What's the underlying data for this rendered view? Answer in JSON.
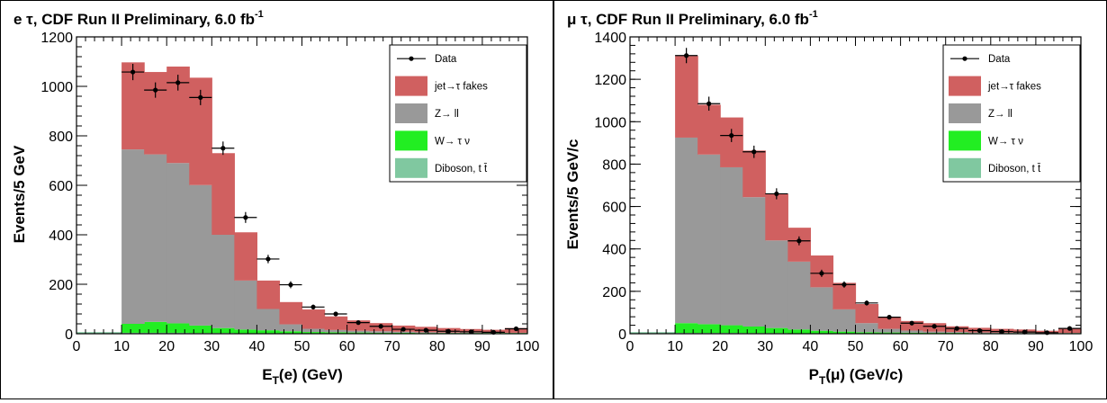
{
  "chart_data": [
    {
      "type": "bar",
      "title": {
        "main": "e  τ, CDF Run II Preliminary, 6.0 fb",
        "sup": "-1"
      },
      "xlabel": {
        "main": "E",
        "sub": "T",
        "rest": "(e) (GeV)"
      },
      "ylabel": "Events/5 GeV",
      "xlim": [
        0,
        100
      ],
      "ylim": [
        0,
        1200
      ],
      "xticks": [
        0,
        10,
        20,
        30,
        40,
        50,
        60,
        70,
        80,
        90,
        100
      ],
      "yticks": [
        0,
        200,
        400,
        600,
        800,
        1000,
        1200
      ],
      "bin_edges": [
        10,
        15,
        20,
        25,
        30,
        35,
        40,
        45,
        50,
        55,
        60,
        65,
        70,
        75,
        80,
        85,
        90,
        95,
        100
      ],
      "stacked": true,
      "series": [
        {
          "name": "Diboson, t t̄",
          "color": "#80c8a0",
          "values": [
            4,
            4,
            4,
            3,
            3,
            2,
            2,
            2,
            1,
            1,
            1,
            1,
            1,
            1,
            1,
            1,
            1,
            1
          ]
        },
        {
          "name": "W→ τ  ν",
          "color": "#22ee22",
          "values": [
            36,
            44,
            38,
            30,
            20,
            15,
            12,
            8,
            6,
            5,
            4,
            3,
            3,
            2,
            2,
            2,
            2,
            2
          ]
        },
        {
          "name": "Z→ ll",
          "color": "#999999",
          "values": [
            705,
            677,
            648,
            568,
            377,
            198,
            86,
            28,
            13,
            9,
            7,
            6,
            4,
            3,
            2,
            2,
            1,
            1
          ]
        },
        {
          "name": "jet→τ fakes",
          "color": "#d06060",
          "values": [
            352,
            333,
            390,
            434,
            330,
            195,
            115,
            90,
            78,
            55,
            42,
            33,
            25,
            22,
            18,
            14,
            12,
            19
          ]
        }
      ],
      "data": {
        "name": "Data",
        "x": [
          12.5,
          17.5,
          22.5,
          27.5,
          32.5,
          37.5,
          42.5,
          47.5,
          52.5,
          57.5,
          62.5,
          67.5,
          72.5,
          77.5,
          82.5,
          87.5,
          92.5,
          97.5
        ],
        "y": [
          1058,
          985,
          1015,
          955,
          750,
          470,
          302,
          198,
          108,
          80,
          45,
          30,
          18,
          14,
          10,
          8,
          6,
          20
        ],
        "err": [
          33,
          31,
          32,
          31,
          27,
          22,
          17,
          14,
          10,
          9,
          7,
          5,
          4,
          4,
          3,
          3,
          2,
          4
        ]
      }
    },
    {
      "type": "bar",
      "title": {
        "main": "μ  τ, CDF Run II Preliminary, 6.0 fb",
        "sup": "-1"
      },
      "xlabel": {
        "main": "P",
        "sub": "T",
        "rest": "(μ) (GeV/c)"
      },
      "ylabel": "Events/5 GeV/c",
      "xlim": [
        0,
        100
      ],
      "ylim": [
        0,
        1400
      ],
      "xticks": [
        0,
        10,
        20,
        30,
        40,
        50,
        60,
        70,
        80,
        90,
        100
      ],
      "yticks": [
        0,
        200,
        400,
        600,
        800,
        1000,
        1200,
        1400
      ],
      "bin_edges": [
        10,
        15,
        20,
        25,
        30,
        35,
        40,
        45,
        50,
        55,
        60,
        65,
        70,
        75,
        80,
        85,
        90,
        95,
        100
      ],
      "stacked": true,
      "series": [
        {
          "name": "Diboson, t t̄",
          "color": "#80c8a0",
          "values": [
            4,
            4,
            4,
            3,
            3,
            2,
            2,
            2,
            1,
            1,
            1,
            1,
            1,
            1,
            1,
            1,
            1,
            1
          ]
        },
        {
          "name": "W→ τ  ν",
          "color": "#22ee22",
          "values": [
            46,
            41,
            36,
            31,
            24,
            18,
            12,
            8,
            6,
            5,
            4,
            3,
            3,
            2,
            2,
            2,
            2,
            2
          ]
        },
        {
          "name": "Z→ ll",
          "color": "#999999",
          "values": [
            875,
            800,
            745,
            610,
            413,
            320,
            205,
            105,
            43,
            17,
            10,
            6,
            4,
            3,
            2,
            2,
            1,
            1
          ]
        },
        {
          "name": "jet→τ fakes",
          "color": "#d06060",
          "values": [
            385,
            235,
            235,
            220,
            220,
            160,
            150,
            125,
            90,
            57,
            45,
            40,
            27,
            22,
            18,
            15,
            10,
            20
          ]
        }
      ],
      "data": {
        "name": "Data",
        "x": [
          12.5,
          17.5,
          22.5,
          27.5,
          32.5,
          37.5,
          42.5,
          47.5,
          52.5,
          57.5,
          62.5,
          67.5,
          72.5,
          77.5,
          82.5,
          87.5,
          92.5,
          97.5
        ],
        "y": [
          1312,
          1085,
          935,
          858,
          660,
          438,
          285,
          232,
          145,
          78,
          50,
          35,
          25,
          15,
          10,
          8,
          5,
          25
        ],
        "err": [
          36,
          33,
          31,
          29,
          26,
          21,
          17,
          15,
          12,
          9,
          7,
          6,
          5,
          4,
          3,
          3,
          2,
          5
        ]
      }
    }
  ]
}
